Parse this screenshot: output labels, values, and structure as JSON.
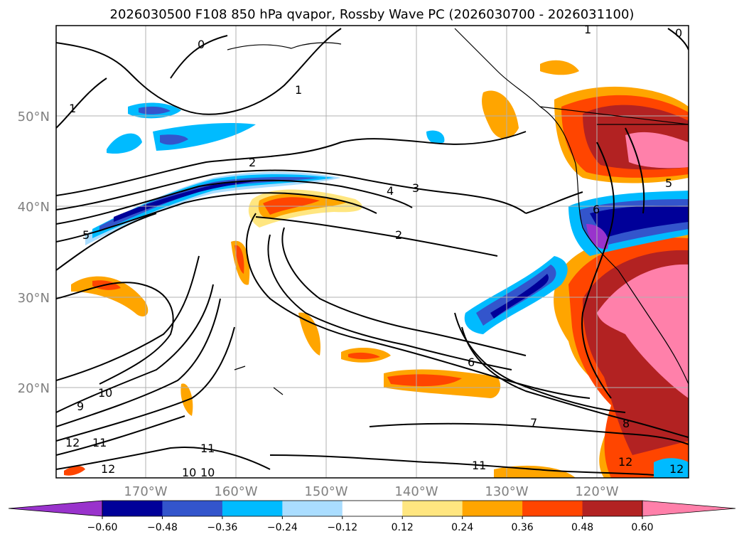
{
  "title": "2026030500 F108 850 hPa qvapor, Rossby Wave PC (2026030700 - 2026031100)",
  "axes": {
    "lat_labels": [
      "50°N",
      "40°N",
      "30°N",
      "20°N"
    ],
    "lon_labels": [
      "170°W",
      "160°W",
      "150°W",
      "140°W",
      "130°W",
      "120°W"
    ]
  },
  "colorbar": {
    "ticks": [
      "−0.60",
      "−0.48",
      "−0.36",
      "−0.24",
      "−0.12",
      "0.12",
      "0.24",
      "0.36",
      "0.48",
      "0.60"
    ],
    "colors": [
      "#9933cc",
      "#000099",
      "#3355cc",
      "#00bbff",
      "#aaddff",
      "#ffffff",
      "#ffe680",
      "#ffa500",
      "#ff4500",
      "#b22222",
      "#ff80aa"
    ]
  },
  "contour_labels": [
    "0",
    "0",
    "1",
    "1",
    "1",
    "2",
    "2",
    "3",
    "4",
    "5",
    "5",
    "6",
    "6",
    "7",
    "8",
    "9",
    "10",
    "10",
    "10",
    "11",
    "11",
    "11",
    "12",
    "12",
    "12",
    "12"
  ]
}
